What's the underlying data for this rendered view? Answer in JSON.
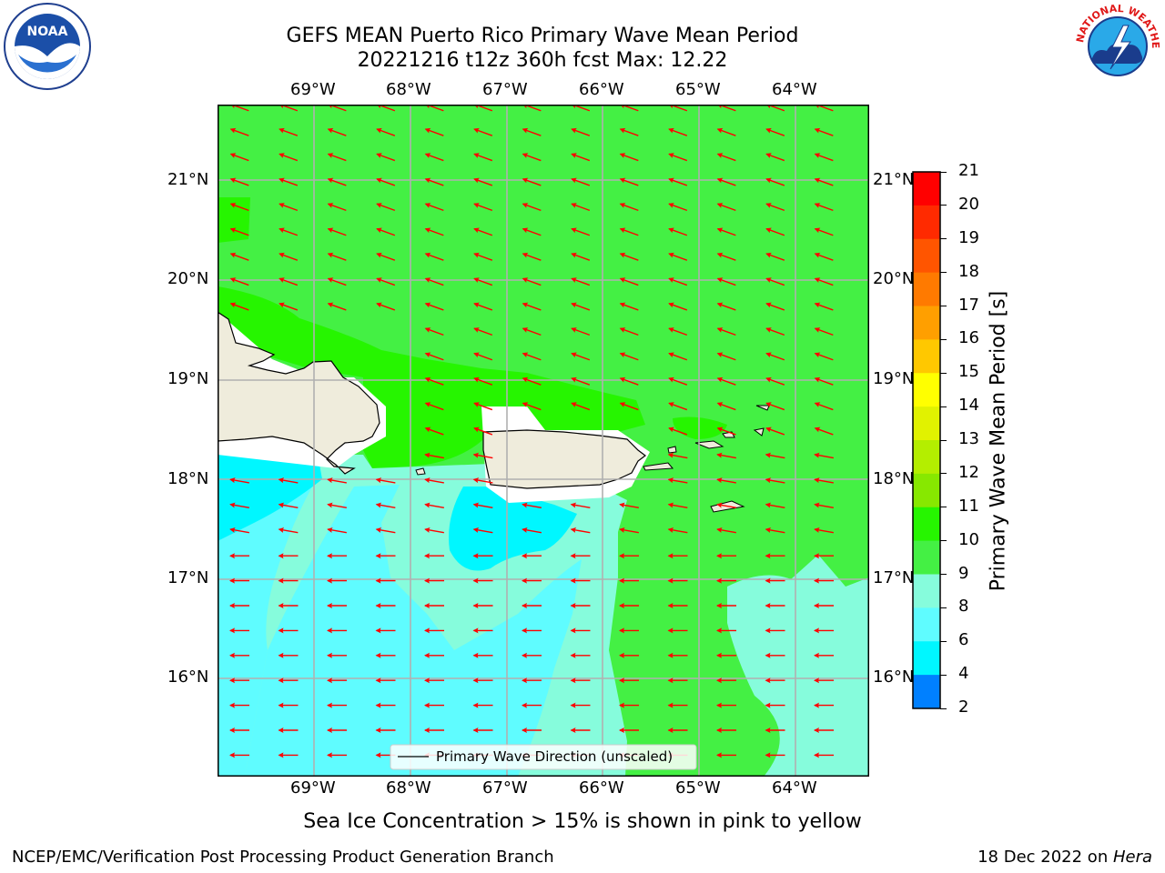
{
  "title": {
    "line1": "GEFS MEAN Puerto Rico Primary Wave Mean Period",
    "line2": "20221216 t12z 360h fcst   Max: 12.22"
  },
  "map": {
    "lon_labels": [
      "69°W",
      "68°W",
      "67°W",
      "66°W",
      "65°W",
      "64°W"
    ],
    "lat_labels": [
      "21°N",
      "20°N",
      "19°N",
      "18°N",
      "17°N",
      "16°N"
    ],
    "legend_label": "Primary Wave Direction (unscaled)",
    "colors": {
      "land": "#efecdc",
      "arrow": "#ff0000",
      "band_10_11": "#44f044",
      "band_11_12": "#26f500",
      "band_9_10": "#86fcdc",
      "band_8_9": "#5ffcff",
      "band_6_8": "#00f7ff"
    }
  },
  "colorbar": {
    "label": "Primary Wave Mean Period [s]",
    "ticks": [
      "21",
      "20",
      "19",
      "18",
      "17",
      "16",
      "15",
      "14",
      "13",
      "12",
      "11",
      "10",
      "9",
      "8",
      "6",
      "4",
      "2"
    ],
    "colors": [
      "#ff0000",
      "#ff2a00",
      "#ff5500",
      "#ff7a00",
      "#ff9f00",
      "#ffc800",
      "#ffff00",
      "#e1f200",
      "#b4ee00",
      "#87e800",
      "#26f500",
      "#44f044",
      "#86fcdc",
      "#5ffcff",
      "#00f7ff",
      "#0080ff",
      "#0000ff"
    ]
  },
  "notes": {
    "sea_ice": "Sea Ice Concentration > 15% is shown in pink to yellow"
  },
  "footer": {
    "left": "NCEP/EMC/Verification Post Processing Product Generation Branch",
    "date": "18 Dec 2022 on ",
    "machine": "Hera"
  },
  "logos": {
    "noaa_text": "NOAA",
    "nws_text": "NATIONAL WEATHER SERVICE"
  }
}
